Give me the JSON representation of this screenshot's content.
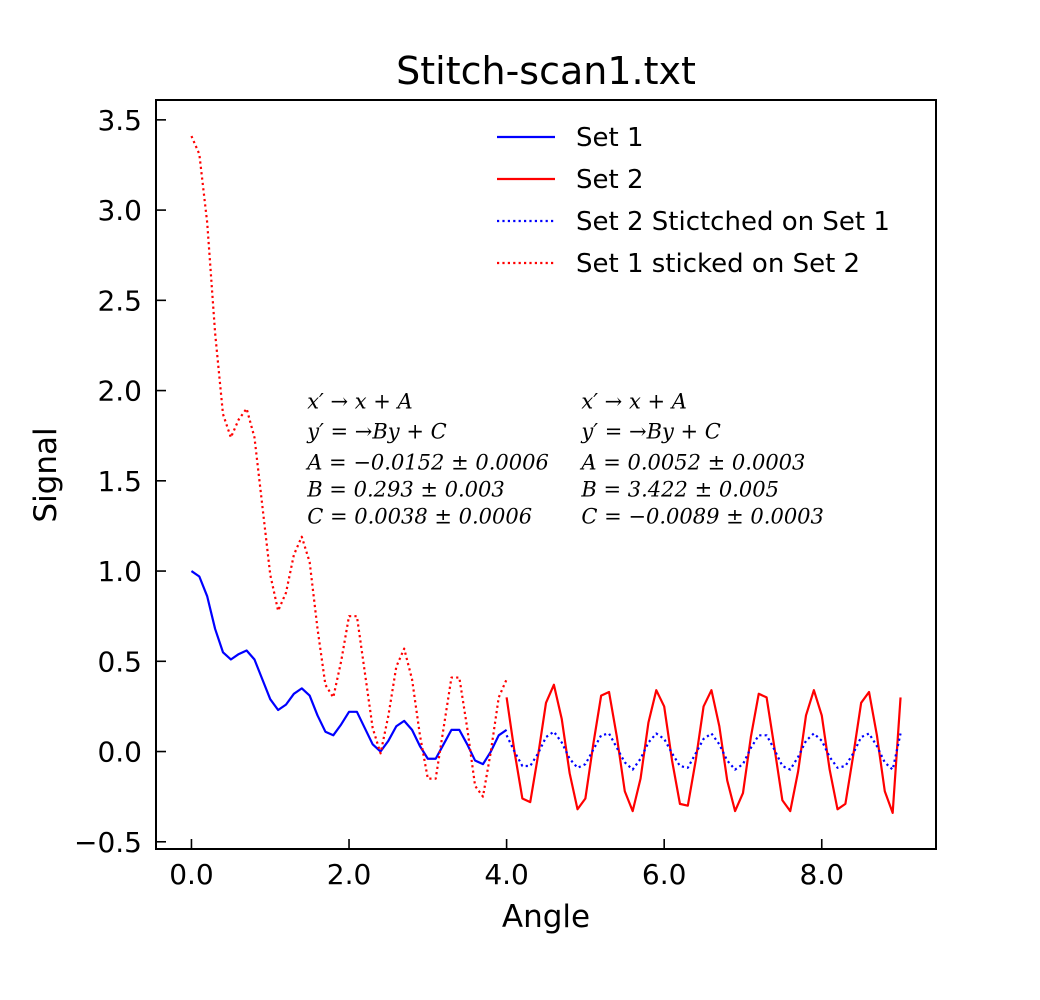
{
  "chart_data": {
    "type": "line",
    "title": "Stitch-scan1.txt",
    "xlabel": "Angle",
    "ylabel": "Signal",
    "xlim": [
      -0.45,
      9.45
    ],
    "ylim": [
      -0.54,
      3.61
    ],
    "x_ticks": [
      0,
      2,
      4,
      6,
      8
    ],
    "x_tick_labels": [
      "0.0",
      "2.0",
      "4.0",
      "6.0",
      "8.0"
    ],
    "y_ticks": [
      -0.5,
      0.0,
      0.5,
      1.0,
      1.5,
      2.0,
      2.5,
      3.0,
      3.5
    ],
    "y_tick_labels": [
      "−0.5",
      "0.0",
      "0.5",
      "1.0",
      "1.5",
      "2.0",
      "2.5",
      "3.0",
      "3.5"
    ],
    "grid": false,
    "legend_position": "top-right",
    "series": [
      {
        "name": "Set 1",
        "style": "solid",
        "color": "#0000ff",
        "x": [
          0.0,
          0.1,
          0.2,
          0.3,
          0.4,
          0.5,
          0.6,
          0.7,
          0.8,
          0.9,
          1.0,
          1.1,
          1.2,
          1.3,
          1.4,
          1.5,
          1.6,
          1.7,
          1.8,
          1.9,
          2.0,
          2.1,
          2.2,
          2.3,
          2.4,
          2.5,
          2.6,
          2.7,
          2.8,
          2.9,
          3.0,
          3.1,
          3.2,
          3.3,
          3.4,
          3.5,
          3.6,
          3.7,
          3.8,
          3.9,
          4.0
        ],
        "y": [
          1.0,
          0.97,
          0.86,
          0.68,
          0.55,
          0.51,
          0.54,
          0.56,
          0.51,
          0.4,
          0.29,
          0.23,
          0.26,
          0.32,
          0.35,
          0.31,
          0.2,
          0.11,
          0.09,
          0.15,
          0.22,
          0.22,
          0.13,
          0.04,
          0.0,
          0.06,
          0.14,
          0.17,
          0.12,
          0.03,
          -0.04,
          -0.04,
          0.04,
          0.12,
          0.12,
          0.04,
          -0.05,
          -0.07,
          0.0,
          0.09,
          0.12
        ]
      },
      {
        "name": "Set 2",
        "style": "solid",
        "color": "#ff0000",
        "x": [
          4.0,
          4.1,
          4.2,
          4.3,
          4.4,
          4.5,
          4.6,
          4.7,
          4.8,
          4.9,
          5.0,
          5.1,
          5.2,
          5.3,
          5.4,
          5.5,
          5.6,
          5.7,
          5.8,
          5.9,
          6.0,
          6.1,
          6.2,
          6.3,
          6.4,
          6.5,
          6.6,
          6.7,
          6.8,
          6.9,
          7.0,
          7.1,
          7.2,
          7.3,
          7.4,
          7.5,
          7.6,
          7.7,
          7.8,
          7.9,
          8.0,
          8.1,
          8.2,
          8.3,
          8.4,
          8.5,
          8.6,
          8.7,
          8.8,
          8.9,
          9.0
        ],
        "y": [
          0.3,
          0.0,
          -0.26,
          -0.28,
          -0.02,
          0.27,
          0.37,
          0.18,
          -0.12,
          -0.32,
          -0.26,
          0.04,
          0.31,
          0.33,
          0.08,
          -0.22,
          -0.33,
          -0.15,
          0.16,
          0.34,
          0.25,
          -0.05,
          -0.29,
          -0.3,
          -0.05,
          0.25,
          0.34,
          0.14,
          -0.16,
          -0.33,
          -0.23,
          0.08,
          0.32,
          0.3,
          0.02,
          -0.27,
          -0.33,
          -0.11,
          0.2,
          0.34,
          0.2,
          -0.1,
          -0.32,
          -0.29,
          -0.02,
          0.27,
          0.33,
          0.09,
          -0.22,
          -0.34,
          0.3
        ]
      },
      {
        "name": "Set 2 Stictched on Set 1",
        "style": "dotted",
        "color": "#0000ff",
        "x": [
          4.0,
          4.1,
          4.2,
          4.3,
          4.4,
          4.5,
          4.6,
          4.7,
          4.8,
          4.9,
          5.0,
          5.1,
          5.2,
          5.3,
          5.4,
          5.5,
          5.6,
          5.7,
          5.8,
          5.9,
          6.0,
          6.1,
          6.2,
          6.3,
          6.4,
          6.5,
          6.6,
          6.7,
          6.8,
          6.9,
          7.0,
          7.1,
          7.2,
          7.3,
          7.4,
          7.5,
          7.6,
          7.7,
          7.8,
          7.9,
          8.0,
          8.1,
          8.2,
          8.3,
          8.4,
          8.5,
          8.6,
          8.7,
          8.8,
          8.9,
          9.0
        ],
        "y": [
          0.09,
          0.0,
          -0.08,
          -0.08,
          -0.01,
          0.08,
          0.11,
          0.05,
          -0.04,
          -0.09,
          -0.07,
          0.01,
          0.09,
          0.1,
          0.02,
          -0.06,
          -0.1,
          -0.04,
          0.05,
          0.1,
          0.07,
          -0.01,
          -0.08,
          -0.09,
          -0.01,
          0.07,
          0.1,
          0.04,
          -0.05,
          -0.1,
          -0.07,
          0.02,
          0.09,
          0.09,
          0.01,
          -0.08,
          -0.1,
          -0.03,
          0.06,
          0.1,
          0.06,
          -0.03,
          -0.09,
          -0.08,
          -0.01,
          0.08,
          0.1,
          0.03,
          -0.06,
          -0.1,
          0.1
        ]
      },
      {
        "name": "Set 1 sticked on Set 2",
        "style": "dotted",
        "color": "#ff0000",
        "x": [
          0.0,
          0.1,
          0.2,
          0.3,
          0.4,
          0.5,
          0.6,
          0.7,
          0.8,
          0.9,
          1.0,
          1.1,
          1.2,
          1.3,
          1.4,
          1.5,
          1.6,
          1.7,
          1.8,
          1.9,
          2.0,
          2.1,
          2.2,
          2.3,
          2.4,
          2.5,
          2.6,
          2.7,
          2.8,
          2.9,
          3.0,
          3.1,
          3.2,
          3.3,
          3.4,
          3.5,
          3.6,
          3.7,
          3.8,
          3.9,
          4.0
        ],
        "y": [
          3.41,
          3.31,
          2.93,
          2.32,
          1.87,
          1.74,
          1.84,
          1.9,
          1.74,
          1.36,
          0.98,
          0.78,
          0.88,
          1.09,
          1.19,
          1.05,
          0.68,
          0.37,
          0.3,
          0.5,
          0.75,
          0.75,
          0.44,
          0.13,
          -0.01,
          0.2,
          0.47,
          0.57,
          0.4,
          0.09,
          -0.15,
          -0.15,
          0.13,
          0.41,
          0.41,
          0.13,
          -0.19,
          -0.25,
          0.0,
          0.3,
          0.4
        ]
      }
    ],
    "annotations": [
      {
        "lines": [
          "x′ → x + A",
          "y′ = →By + C",
          "A = −0.0152 ± 0.0006",
          "B = 0.293 ± 0.003",
          "C = 0.0038 ± 0.0006"
        ],
        "x": 1.52,
        "y": 1.9
      },
      {
        "lines": [
          "x′ → x + A",
          "y′ = →By + C",
          "A = 0.0052 ± 0.0003",
          "B = 3.422 ± 0.005",
          "C = −0.0089 ± 0.0003"
        ],
        "x": 5.0,
        "y": 1.9
      }
    ]
  }
}
